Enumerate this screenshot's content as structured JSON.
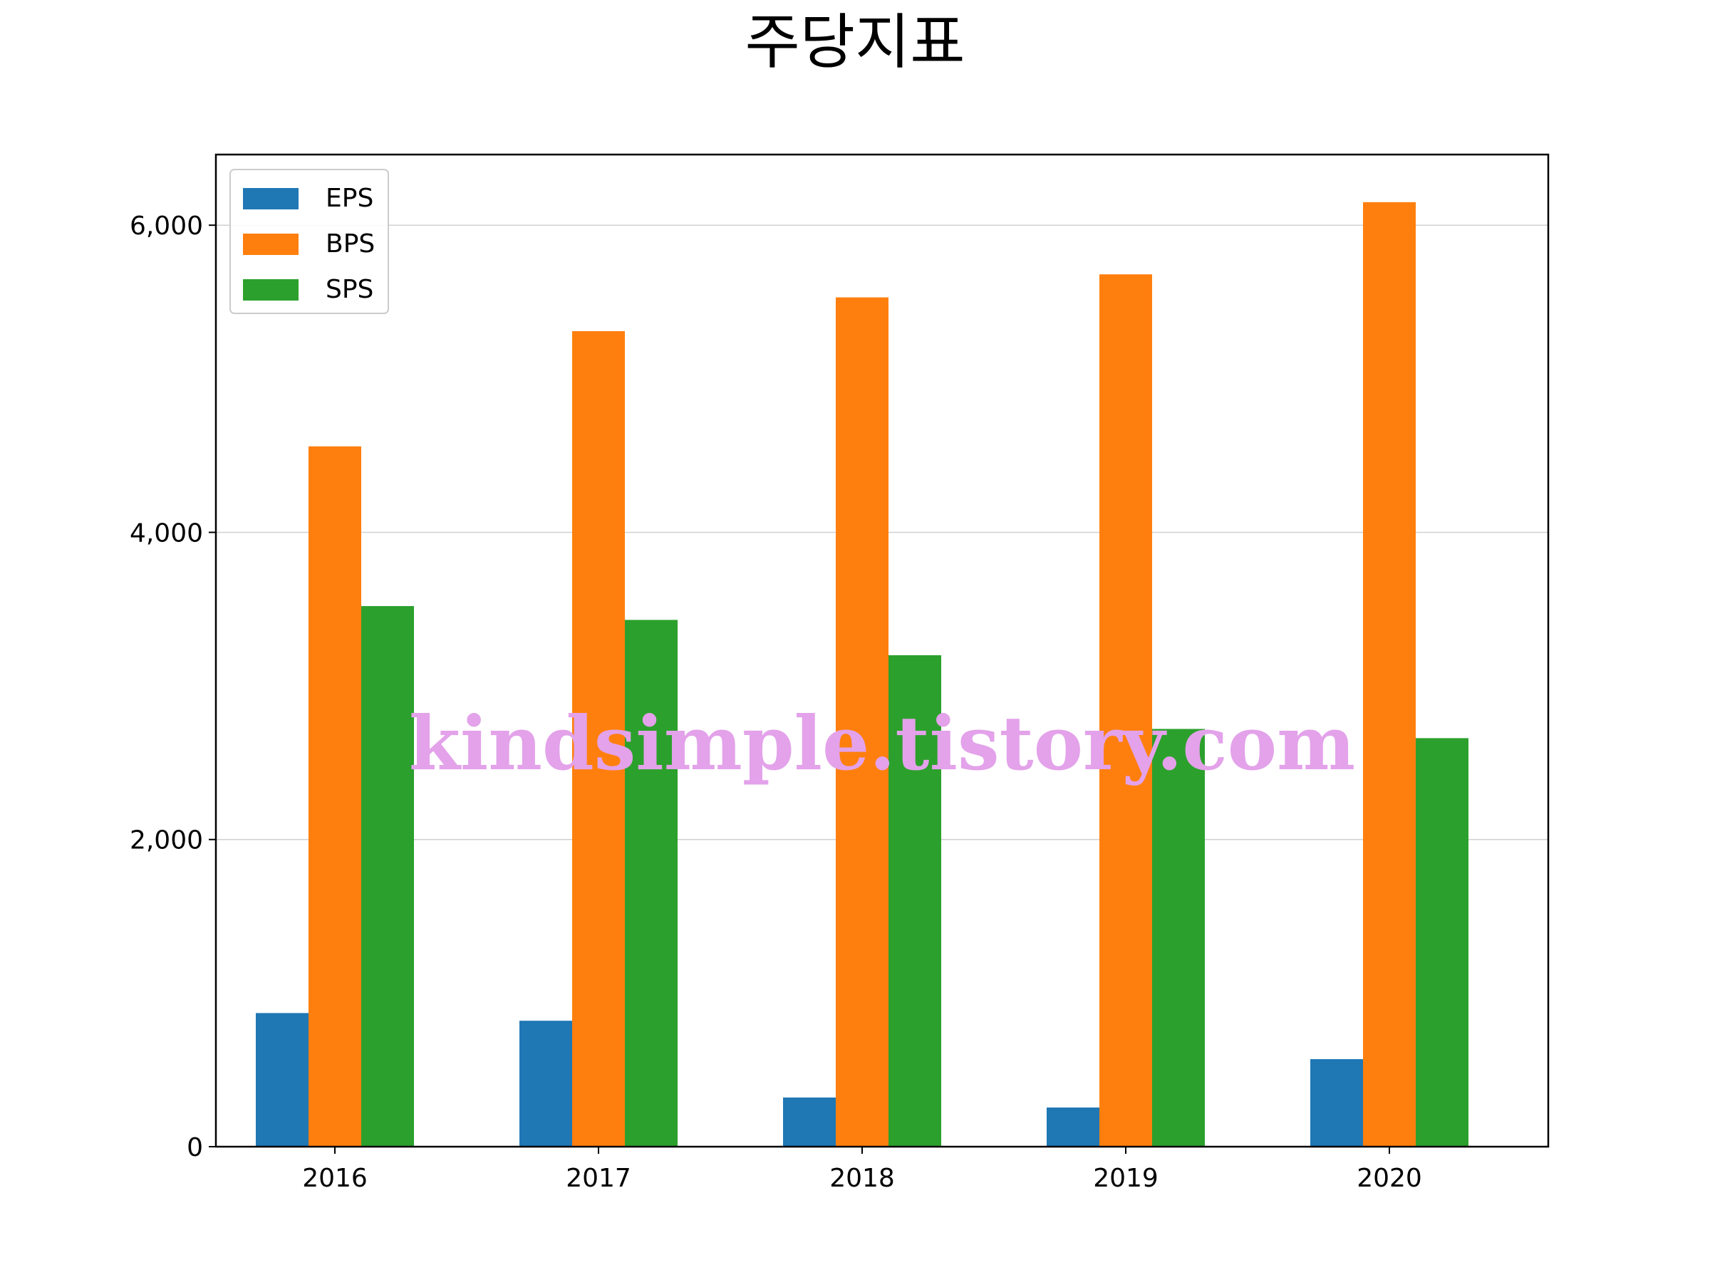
{
  "chart_data": {
    "type": "bar",
    "title": "주당지표",
    "categories": [
      "2016",
      "2017",
      "2018",
      "2019",
      "2020"
    ],
    "series": [
      {
        "name": "EPS",
        "color": "#1f77b4",
        "values": [
          870,
          820,
          320,
          255,
          570
        ]
      },
      {
        "name": "BPS",
        "color": "#ff7f0e",
        "values": [
          4560,
          5310,
          5530,
          5680,
          6150
        ]
      },
      {
        "name": "SPS",
        "color": "#2ca02c",
        "values": [
          3520,
          3430,
          3200,
          2720,
          2660
        ]
      }
    ],
    "ylim": [
      0,
      6460
    ],
    "yticks": [
      0,
      2000,
      4000,
      6000
    ],
    "ytick_labels": [
      "0",
      "2,000",
      "4,000",
      "6,000"
    ],
    "grid": "horizontal",
    "legend_position": "top-left"
  },
  "watermark": "kindsimple.tistory.com"
}
